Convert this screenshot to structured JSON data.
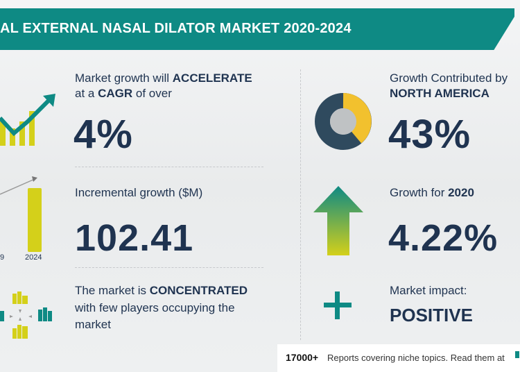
{
  "header": {
    "title": "AL EXTERNAL NASAL DILATOR MARKET 2020-2024"
  },
  "left": {
    "growth_line1_pre": "Market growth will ",
    "growth_line1_bold": "ACCELERATE",
    "growth_line2_pre": "at a ",
    "growth_line2_bold": "CAGR",
    "growth_line2_post": " of over",
    "cagr_value": "4%",
    "incremental_label": "Incremental growth ($M)",
    "incremental_value": "102.41",
    "chart_year_left": "9",
    "chart_year_right": "2024",
    "market_line1_pre": "The market is ",
    "market_line1_bold": "CONCENTRATED",
    "market_line2": "with few players occupying the",
    "market_line3": "market"
  },
  "right": {
    "contrib_line1": "Growth Contributed by",
    "contrib_line2": "NORTH AMERICA",
    "contrib_value": "43%",
    "growth_for_label": "Growth for ",
    "growth_for_year": "2020",
    "growth_for_value": "4.22%",
    "impact_label": "Market impact:",
    "impact_value": "POSITIVE"
  },
  "footer": {
    "count": "17000+",
    "text": "Reports covering niche topics. Read them at"
  },
  "colors": {
    "teal": "#0e8a84",
    "navy": "#1f3350",
    "yellow": "#d4d01a",
    "gold": "#f2c12e"
  }
}
